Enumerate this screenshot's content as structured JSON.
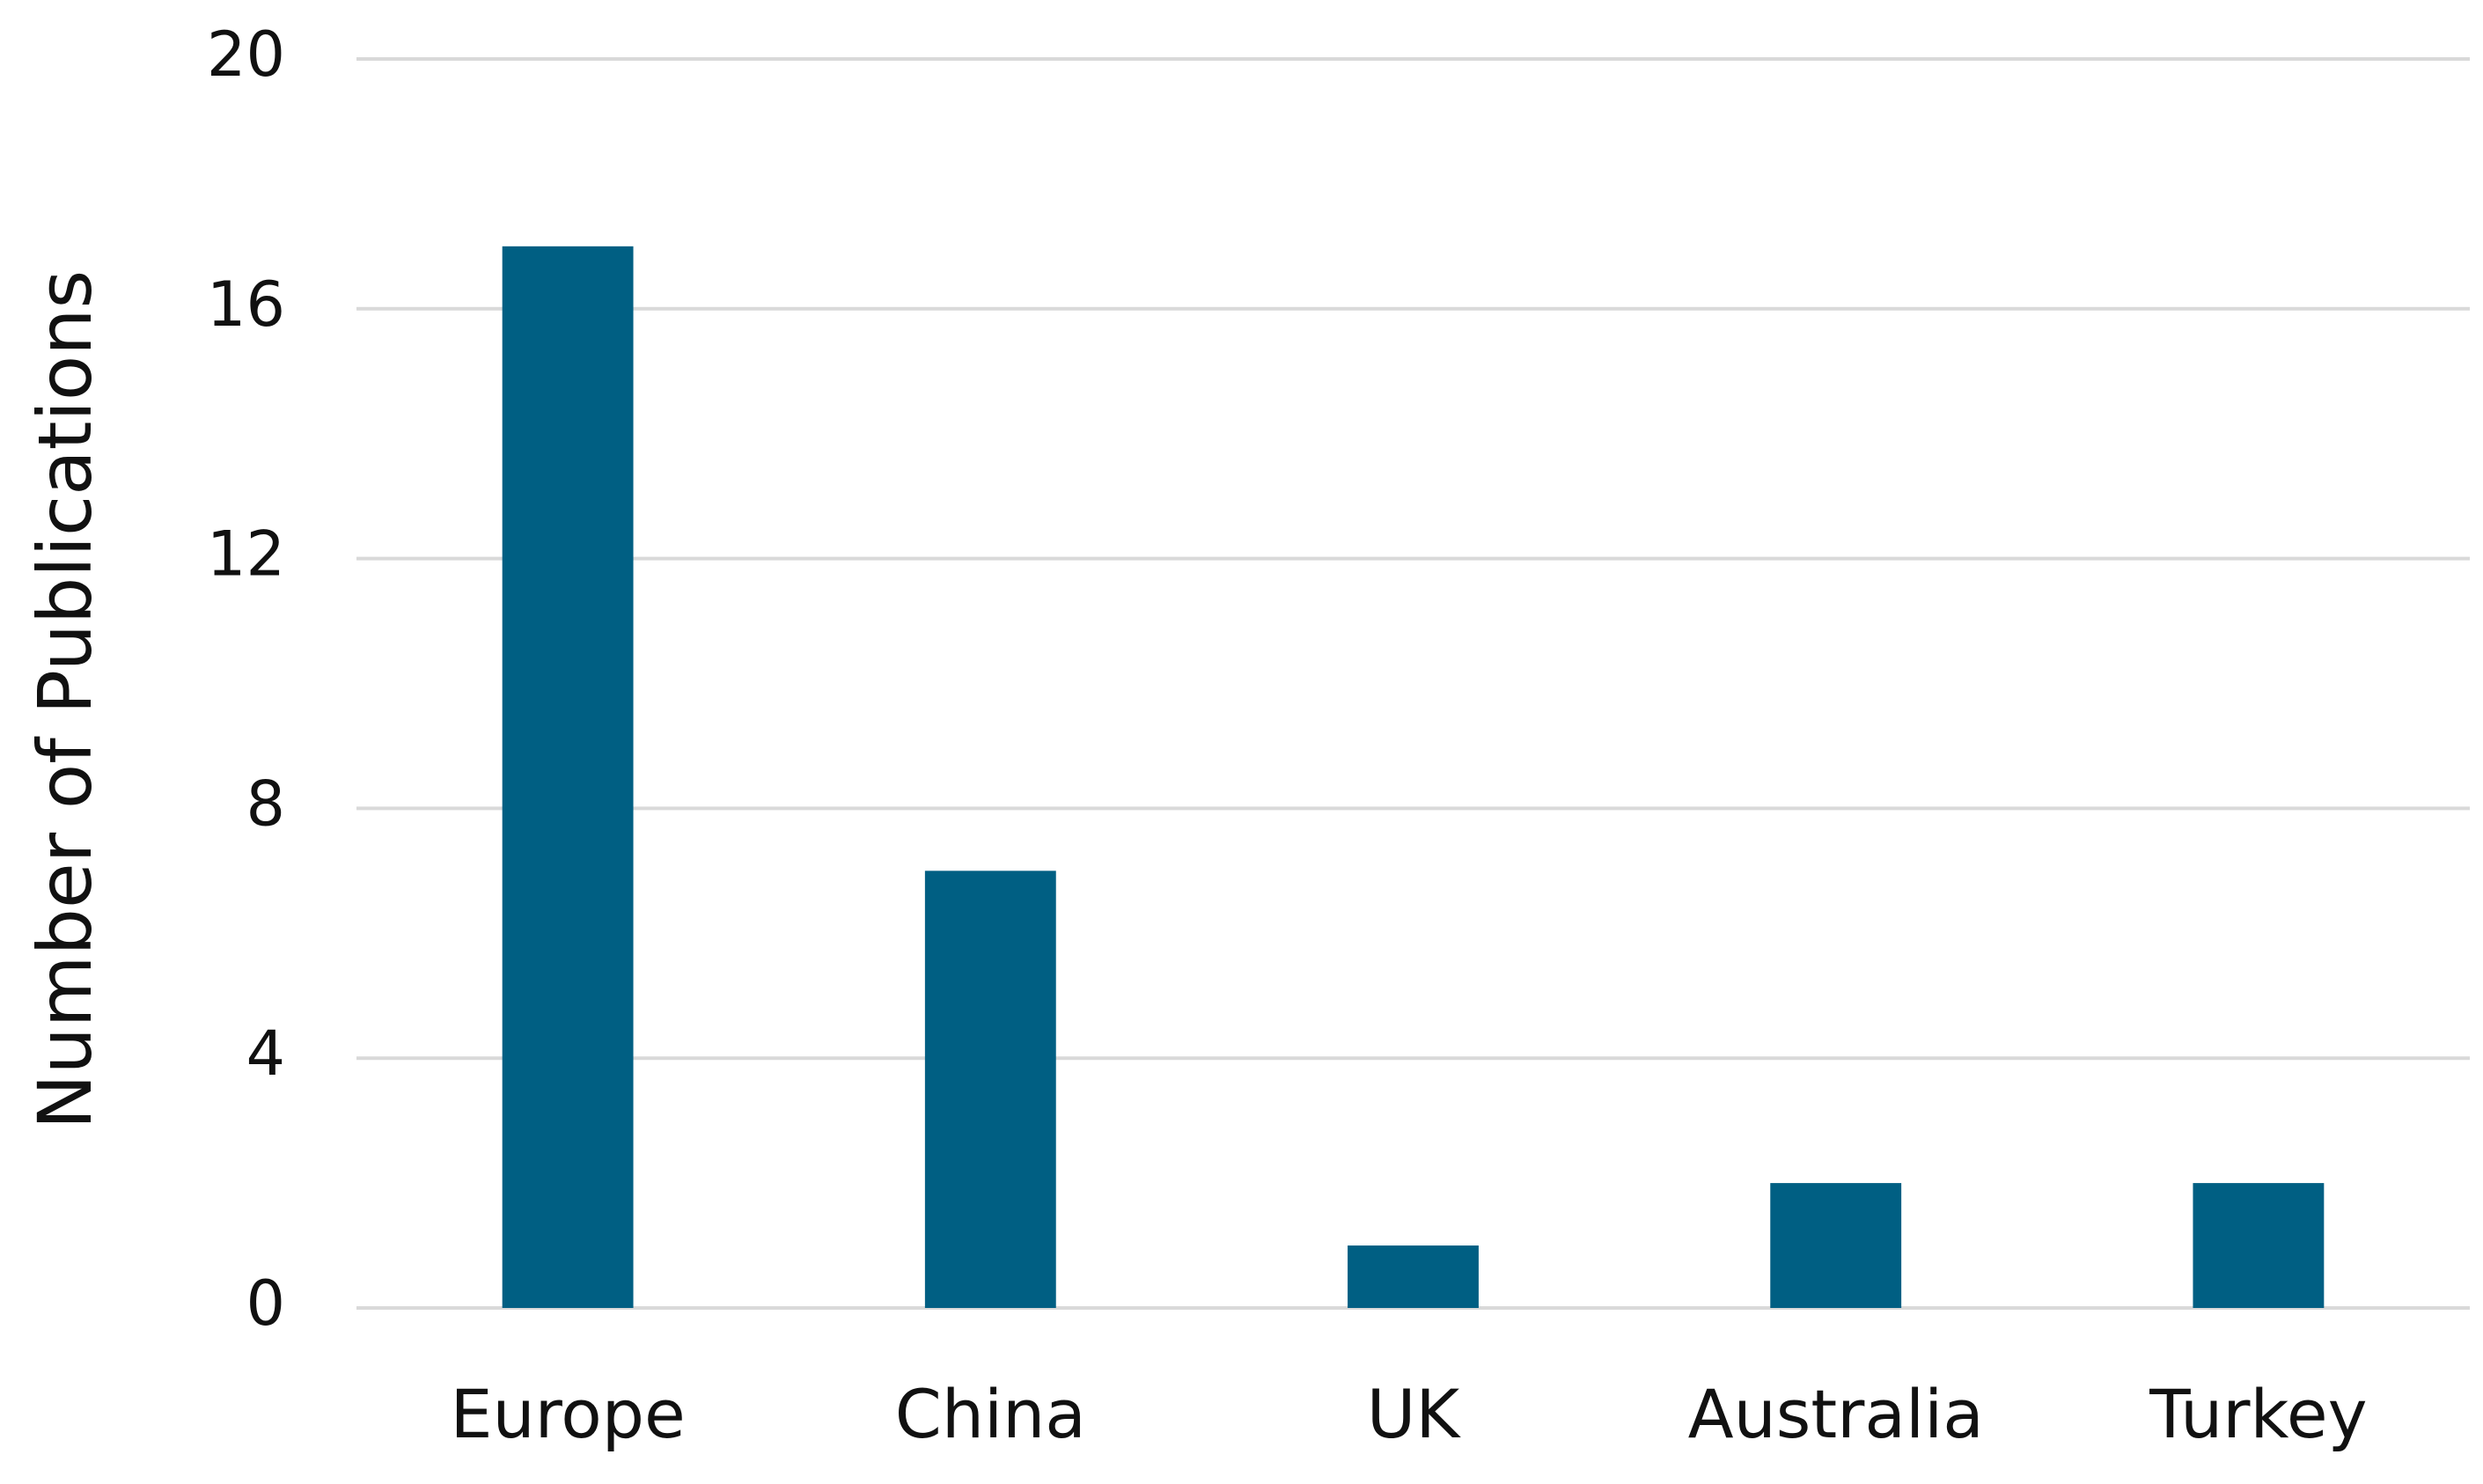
{
  "chart_data": {
    "type": "bar",
    "ylabel": "Number of Publications",
    "categories": [
      "Europe",
      "China",
      "UK",
      "Australia",
      "Turkey"
    ],
    "values": [
      17,
      7,
      1,
      2,
      2
    ],
    "color": "#005f83",
    "ylim": [
      0,
      20
    ],
    "yticks": [
      0,
      4,
      8,
      12,
      16,
      20
    ],
    "grid": true
  }
}
